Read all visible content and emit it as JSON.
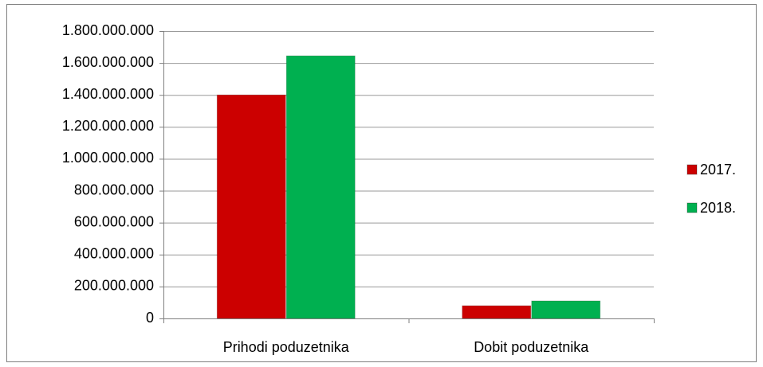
{
  "chart_data": {
    "type": "bar",
    "categories": [
      "Prihodi poduzetnika",
      "Dobit poduzetnika"
    ],
    "series": [
      {
        "name": "2017.",
        "color": "#cc0000",
        "values": [
          1400000000,
          80000000
        ]
      },
      {
        "name": "2018.",
        "color": "#00b050",
        "values": [
          1645000000,
          110000000
        ]
      }
    ],
    "ylim": [
      0,
      1800000000
    ],
    "yticks": [
      0,
      {
        "value": 200000000,
        "label": "200.000.000"
      },
      {
        "value": 400000000,
        "label": "400.000.000"
      },
      {
        "value": 600000000,
        "label": "600.000.000"
      },
      {
        "value": 800000000,
        "label": "800.000.000"
      },
      {
        "value": 1000000000,
        "label": "1.000.000.000"
      },
      {
        "value": 1200000000,
        "label": "1.200.000.000"
      },
      {
        "value": 1400000000,
        "label": "1.400.000.000"
      },
      {
        "value": 1600000000,
        "label": "1.600.000.000"
      },
      {
        "value": 1800000000,
        "label": "1.800.000.000"
      }
    ],
    "grid": true,
    "legend": "right"
  }
}
